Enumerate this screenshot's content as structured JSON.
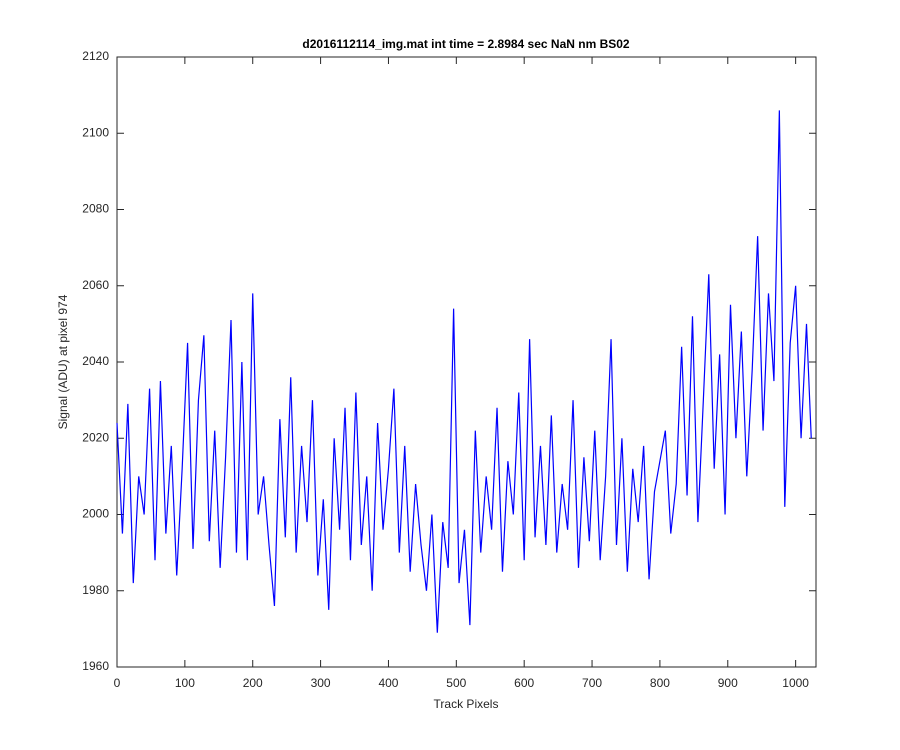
{
  "chart_data": {
    "type": "line",
    "title": "d2016112114_img.mat int time = 2.8984 sec  NaN nm BS02",
    "x_label": "Track Pixels",
    "y_label": "Signal (ADU) at pixel 974",
    "x": [
      0,
      8,
      16,
      24,
      32,
      40,
      48,
      56,
      64,
      72,
      80,
      88,
      96,
      104,
      112,
      120,
      128,
      136,
      144,
      152,
      160,
      168,
      176,
      184,
      192,
      200,
      208,
      216,
      224,
      232,
      240,
      248,
      256,
      264,
      272,
      280,
      288,
      296,
      304,
      312,
      320,
      328,
      336,
      344,
      352,
      360,
      368,
      376,
      384,
      392,
      400,
      408,
      416,
      424,
      432,
      440,
      448,
      456,
      464,
      472,
      480,
      488,
      496,
      504,
      512,
      520,
      528,
      536,
      544,
      552,
      560,
      568,
      576,
      584,
      592,
      600,
      608,
      616,
      624,
      632,
      640,
      648,
      656,
      664,
      672,
      680,
      688,
      696,
      704,
      712,
      720,
      728,
      736,
      744,
      752,
      760,
      768,
      776,
      784,
      792,
      800,
      808,
      816,
      824,
      832,
      840,
      848,
      856,
      864,
      872,
      880,
      888,
      896,
      904,
      912,
      920,
      928,
      936,
      944,
      952,
      960,
      968,
      976,
      984,
      992,
      1000,
      1008,
      1016,
      1023
    ],
    "series": [
      {
        "name": "signal",
        "color": "#0000ff",
        "values": [
          2024,
          1995,
          2029,
          1982,
          2010,
          2000,
          2033,
          1988,
          2035,
          1995,
          2018,
          1984,
          2012,
          2045,
          1991,
          2030,
          2047,
          1993,
          2022,
          1986,
          2015,
          2051,
          1990,
          2040,
          1988,
          2058,
          2000,
          2010,
          1992,
          1976,
          2025,
          1994,
          2036,
          1990,
          2018,
          1998,
          2030,
          1984,
          2004,
          1975,
          2020,
          1996,
          2028,
          1988,
          2032,
          1992,
          2010,
          1980,
          2024,
          1996,
          2012,
          2033,
          1990,
          2018,
          1985,
          2008,
          1992,
          1980,
          2000,
          1969,
          1998,
          1986,
          2054,
          1982,
          1996,
          1971,
          2022,
          1990,
          2010,
          1996,
          2028,
          1985,
          2014,
          2000,
          2032,
          1988,
          2046,
          1994,
          2018,
          1992,
          2026,
          1990,
          2008,
          1996,
          2030,
          1986,
          2015,
          1993,
          2022,
          1988,
          2010,
          2046,
          1992,
          2020,
          1985,
          2012,
          1998,
          2018,
          1983,
          2006,
          2014,
          2022,
          1995,
          2008,
          2044,
          2005,
          2052,
          1998,
          2030,
          2063,
          2012,
          2042,
          2000,
          2055,
          2020,
          2048,
          2010,
          2038,
          2073,
          2022,
          2058,
          2035,
          2106,
          2002,
          2045,
          2060,
          2020,
          2050,
          2020
        ]
      }
    ],
    "xlim": [
      0,
      1030
    ],
    "ylim": [
      1960,
      2120
    ],
    "xticks": [
      0,
      100,
      200,
      300,
      400,
      500,
      600,
      700,
      800,
      900,
      1000
    ],
    "yticks": [
      1960,
      1980,
      2000,
      2020,
      2040,
      2060,
      2080,
      2100,
      2120
    ]
  }
}
